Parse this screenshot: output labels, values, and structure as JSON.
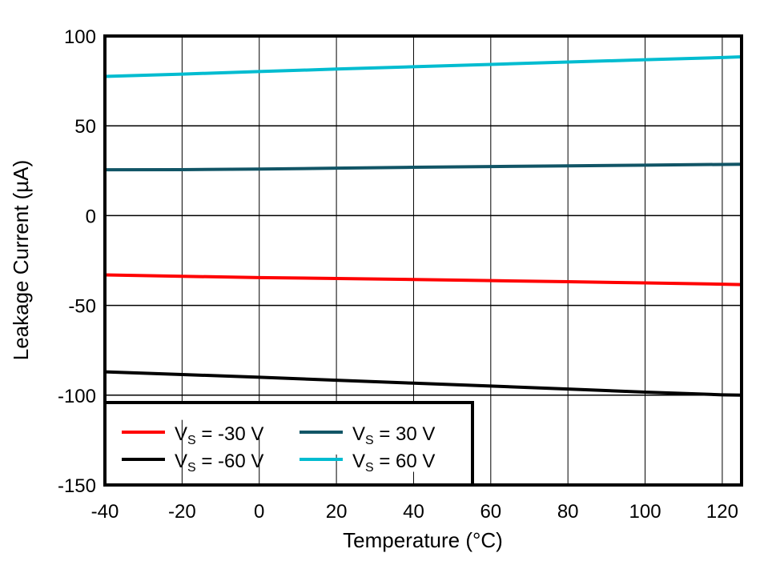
{
  "chart_data": {
    "type": "line",
    "title": "",
    "xlabel": "Temperature (°C)",
    "ylabel": "Leakage Current (µA)",
    "xlim": [
      -40,
      125
    ],
    "ylim": [
      -150,
      100
    ],
    "xticks": [
      -40,
      -20,
      0,
      20,
      40,
      60,
      80,
      100,
      120
    ],
    "yticks": [
      100,
      50,
      0,
      -50,
      -100,
      -150
    ],
    "grid": true,
    "legend_position": "bottom-left",
    "x": [
      -40,
      -20,
      0,
      20,
      40,
      60,
      80,
      100,
      120,
      125
    ],
    "series": [
      {
        "name": "V_S = -30 V",
        "label_main": "V",
        "label_sub": "S",
        "label_rest": " = -30 V",
        "color": "#ff0000",
        "values": [
          -33.0,
          -33.8,
          -34.5,
          -35.0,
          -35.6,
          -36.2,
          -36.8,
          -37.5,
          -38.2,
          -38.4
        ]
      },
      {
        "name": "V_S = 30 V",
        "label_main": "V",
        "label_sub": "S",
        "label_rest": " = 30 V",
        "color": "#115566",
        "values": [
          25.5,
          25.6,
          25.9,
          26.4,
          26.9,
          27.3,
          27.7,
          28.1,
          28.5,
          28.6
        ]
      },
      {
        "name": "V_S = -60 V",
        "label_main": "V",
        "label_sub": "S",
        "label_rest": " = -60 V",
        "color": "#000000",
        "values": [
          -87.0,
          -88.5,
          -90.0,
          -91.7,
          -93.3,
          -94.9,
          -96.6,
          -98.3,
          -99.8,
          -100.0
        ]
      },
      {
        "name": "V_S = 60 V",
        "label_main": "V",
        "label_sub": "S",
        "label_rest": " = 60 V",
        "color": "#00bcd0",
        "values": [
          77.5,
          78.8,
          80.2,
          81.6,
          82.9,
          84.2,
          85.5,
          86.8,
          88.0,
          88.4
        ]
      }
    ]
  }
}
